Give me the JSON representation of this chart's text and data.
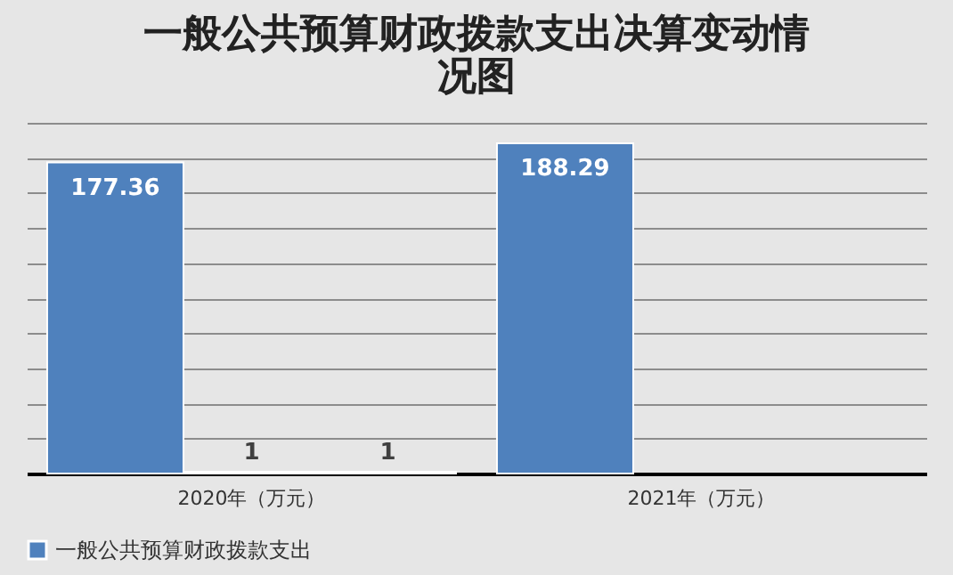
{
  "chart_data": {
    "type": "bar",
    "title": "一般公共预算财政拨款支出决算变动情况图",
    "categories": [
      "2020年（万元）",
      "2021年（万元）"
    ],
    "series": [
      {
        "name": "一般公共预算财政拨款支出",
        "color": "#4f81bd",
        "values": [
          177.36,
          188.29
        ]
      },
      {
        "color": "#c0504d",
        "values": [
          1,
          null
        ]
      },
      {
        "color": "#9bbb59",
        "values": [
          1,
          null
        ]
      }
    ],
    "tick_labels": "x",
    "grid": "y",
    "legend": "bottom",
    "data_labels": true
  }
}
